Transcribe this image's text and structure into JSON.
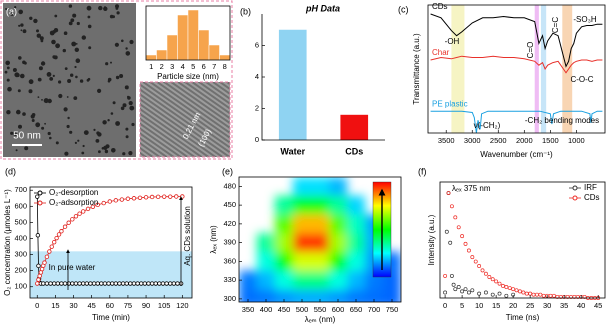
{
  "chart_data": [
    {
      "type": "bar",
      "panel_label": "(a)",
      "x_label": "Particle size (nm)",
      "categories": [
        1,
        2,
        3,
        4,
        5,
        6,
        7,
        8
      ],
      "values": [
        1,
        2,
        5,
        9,
        10,
        6,
        3,
        1
      ],
      "color": "#f6a44c",
      "image_labels": [
        "50 nm",
        "0.21 nm",
        "(100)"
      ]
    },
    {
      "type": "bar",
      "panel_label": "(b)",
      "title": "pH Data",
      "categories": [
        "Water",
        "CDs"
      ],
      "values": [
        7.0,
        1.6
      ],
      "colors": [
        "#8fd3f2",
        "#f01010"
      ],
      "ylim": [
        0,
        8
      ],
      "yticks": [
        0,
        2,
        4,
        6
      ]
    },
    {
      "type": "line",
      "panel_label": "(c)",
      "x_label": "Wavenumber (cm⁻¹)",
      "y_label": "Transmittance (a.u.)",
      "xlim": [
        3850,
        450
      ],
      "xticks": [
        3500,
        3000,
        2500,
        2000,
        1500,
        1000
      ],
      "ylim": [
        0,
        1
      ],
      "bands": [
        {
          "x": [
            3400,
            3150
          ],
          "color": "#f3f0b0"
        },
        {
          "x": [
            1800,
            1720
          ],
          "color": "#e9a6f0"
        },
        {
          "x": [
            1680,
            1580
          ],
          "color": "#b4dcf5"
        },
        {
          "x": [
            1270,
            1080
          ],
          "color": "#f5c79a"
        }
      ],
      "series": [
        {
          "name": "CDs",
          "color": "#000000",
          "x": [
            3800,
            3600,
            3400,
            3300,
            3200,
            3000,
            2800,
            2600,
            2400,
            2200,
            2000,
            1800,
            1720,
            1650,
            1600,
            1550,
            1450,
            1350,
            1250,
            1200,
            1150,
            1100,
            1050,
            1000,
            900,
            800,
            700,
            600,
            500
          ],
          "values": [
            0.93,
            0.9,
            0.8,
            0.76,
            0.79,
            0.86,
            0.9,
            0.9,
            0.91,
            0.9,
            0.9,
            0.87,
            0.7,
            0.76,
            0.66,
            0.72,
            0.78,
            0.76,
            0.6,
            0.52,
            0.56,
            0.66,
            0.7,
            0.78,
            0.83,
            0.84,
            0.84,
            0.85,
            0.85
          ]
        },
        {
          "name": "Char",
          "color": "#e8302a",
          "x": [
            3800,
            3600,
            3400,
            3300,
            3200,
            3000,
            2800,
            2600,
            2400,
            2200,
            2000,
            1800,
            1720,
            1650,
            1600,
            1550,
            1450,
            1350,
            1250,
            1200,
            1150,
            1100,
            1050,
            1000,
            900,
            800,
            700,
            600,
            500
          ],
          "values": [
            0.57,
            0.59,
            0.58,
            0.59,
            0.6,
            0.59,
            0.59,
            0.6,
            0.59,
            0.59,
            0.58,
            0.56,
            0.53,
            0.55,
            0.5,
            0.53,
            0.55,
            0.56,
            0.5,
            0.47,
            0.5,
            0.53,
            0.55,
            0.56,
            0.57,
            0.57,
            0.56,
            0.57,
            0.57
          ]
        },
        {
          "name": "PE plastic",
          "color": "#1aa0e0",
          "x": [
            3800,
            3500,
            3200,
            3000,
            2960,
            2920,
            2890,
            2850,
            2820,
            2700,
            2400,
            2000,
            1700,
            1500,
            1470,
            1440,
            1300,
            1100,
            900,
            740,
            720,
            700,
            600,
            500
          ],
          "values": [
            0.17,
            0.17,
            0.17,
            0.16,
            0.12,
            0.0,
            0.1,
            0.03,
            0.15,
            0.17,
            0.17,
            0.17,
            0.17,
            0.15,
            0.07,
            0.15,
            0.17,
            0.17,
            0.17,
            0.15,
            0.08,
            0.15,
            0.17,
            0.17
          ]
        }
      ],
      "annotations": [
        "-OH",
        "C=O",
        "C=C",
        "-SO₃H",
        "C-O-C",
        "ν(-CH₂)",
        "-CH₂ bending modes"
      ]
    },
    {
      "type": "line",
      "panel_label": "(d)",
      "x_label": "Time (min)",
      "y_label": "O₂ concentration (μmoles L⁻¹)",
      "xlim": [
        -6,
        128
      ],
      "xticks": [
        0,
        15,
        30,
        45,
        60,
        75,
        90,
        105,
        120
      ],
      "ylim": [
        30,
        720
      ],
      "yticks": [
        100,
        200,
        300,
        400,
        500,
        600,
        700
      ],
      "band": {
        "y": [
          30,
          320
        ],
        "color": "#bfe6f8"
      },
      "legend": "upper left",
      "series": [
        {
          "name": "O₂-desorption",
          "color": "#000000",
          "marker": "circle",
          "x": [
            0,
            0.5,
            1,
            1.5,
            2,
            3,
            5,
            8,
            11,
            14,
            17,
            20,
            23,
            26,
            29,
            32,
            35,
            38,
            41,
            44,
            47,
            50,
            53,
            56,
            59,
            62,
            65,
            68,
            71,
            74,
            77,
            80,
            83,
            86,
            89,
            92,
            95,
            98,
            101,
            104,
            107,
            110,
            113,
            116,
            119
          ],
          "values": [
            660,
            420,
            230,
            150,
            125,
            120,
            120,
            120,
            120,
            120,
            120,
            120,
            120,
            120,
            120,
            120,
            120,
            120,
            120,
            120,
            120,
            120,
            120,
            120,
            120,
            120,
            120,
            120,
            120,
            120,
            120,
            120,
            120,
            120,
            120,
            120,
            120,
            120,
            120,
            120,
            120,
            120,
            120,
            120,
            120
          ]
        },
        {
          "name": "O₂-adsorption",
          "color": "#e0201c",
          "marker": "circle",
          "x": [
            0,
            1,
            2,
            3,
            4,
            5,
            6,
            8,
            10,
            12,
            14,
            16,
            18,
            20,
            23,
            26,
            29,
            32,
            35,
            38,
            42,
            46,
            50,
            55,
            60,
            65,
            70,
            75,
            80,
            85,
            90,
            95,
            100,
            105,
            110,
            115,
            120
          ],
          "values": [
            120,
            144,
            167,
            189,
            210,
            231,
            250,
            286,
            319,
            349,
            377,
            402,
            425,
            445,
            473,
            498,
            519,
            538,
            554,
            568,
            584,
            597,
            609,
            620,
            630,
            637,
            642,
            647,
            650,
            653,
            656,
            658,
            659,
            660,
            660,
            661,
            661
          ]
        }
      ],
      "annotations": [
        "In pure water",
        "Aq. CDs solution"
      ]
    },
    {
      "type": "heatmap",
      "panel_label": "(e)",
      "x_label": "λₑₘ (nm)",
      "y_label": "λₑₓ (nm)",
      "xlim": [
        325,
        775
      ],
      "xticks": [
        350,
        400,
        450,
        500,
        550,
        600,
        650,
        700,
        750
      ],
      "ylim": [
        295,
        495
      ],
      "yticks": [
        300,
        330,
        360,
        390,
        420,
        450,
        480
      ],
      "colormap": [
        "#0000ff",
        "#00ffff",
        "#00ff00",
        "#ffff00",
        "#ff0000"
      ],
      "x": [
        350,
        400,
        450,
        500,
        550,
        600,
        650,
        700,
        750
      ],
      "y": [
        300,
        330,
        360,
        390,
        420,
        450,
        480
      ],
      "z": [
        [
          0.11,
          0.12,
          0.15,
          0.17,
          0.17,
          0.15,
          0.12,
          0.11,
          0.1
        ],
        [
          0.12,
          0.18,
          0.28,
          0.37,
          0.37,
          0.28,
          0.18,
          0.12,
          0.1
        ],
        [
          null,
          0.28,
          0.5,
          0.71,
          0.71,
          0.5,
          0.28,
          0.15,
          0.11
        ],
        [
          null,
          0.35,
          0.66,
          0.95,
          0.95,
          0.66,
          0.35,
          0.17,
          null
        ],
        [
          null,
          null,
          0.58,
          0.82,
          0.82,
          0.58,
          0.31,
          0.16,
          null
        ],
        [
          null,
          null,
          0.35,
          0.47,
          0.47,
          0.35,
          0.21,
          null,
          null
        ],
        [
          null,
          null,
          null,
          0.22,
          0.22,
          0.18,
          null,
          null,
          null
        ]
      ]
    },
    {
      "type": "scatter",
      "panel_label": "(f)",
      "x_label": "Time (ns)",
      "y_label": "Intensity (a.u.)",
      "xlim": [
        -1.5,
        47
      ],
      "xticks": [
        0,
        5,
        10,
        15,
        20,
        25,
        30,
        35,
        40,
        45
      ],
      "ylim": [
        0,
        1.05
      ],
      "legend": "upper right",
      "annotation": "λₑₓ 375 nm",
      "series": [
        {
          "name": "IRF",
          "color": "#333333",
          "x": [
            0,
            0.5,
            1,
            1.5,
            2,
            2.5,
            3,
            4,
            5,
            6,
            7,
            8,
            10,
            12,
            14,
            16,
            18,
            20
          ],
          "values": [
            0.05,
            0.6,
            0.95,
            0.5,
            0.2,
            0.12,
            0.08,
            0.1,
            0.06,
            0.08,
            0.05,
            0.07,
            0.04,
            0.05,
            0.03,
            0.04,
            0.02,
            0.03
          ]
        },
        {
          "name": "CDs",
          "color": "#ee2a24",
          "x": [
            0,
            1,
            2,
            3,
            4,
            5,
            6,
            7,
            8,
            9,
            10,
            11,
            12,
            13,
            14,
            15,
            16,
            17,
            18,
            19,
            20,
            21,
            22,
            23,
            24,
            25,
            26,
            27,
            28,
            29,
            30,
            31,
            32,
            33,
            34,
            35,
            36,
            37,
            38,
            39,
            40,
            41,
            42,
            43,
            44,
            45
          ],
          "values": [
            0.2,
            0.95,
            0.83,
            0.73,
            0.64,
            0.56,
            0.49,
            0.43,
            0.37,
            0.33,
            0.29,
            0.25,
            0.22,
            0.19,
            0.17,
            0.15,
            0.13,
            0.11,
            0.1,
            0.09,
            0.08,
            0.07,
            0.06,
            0.05,
            0.04,
            0.04,
            0.03,
            0.03,
            0.03,
            0.02,
            0.02,
            0.02,
            0.02,
            0.01,
            0.01,
            0.01,
            0.01,
            0.01,
            0.01,
            0.01,
            0.01,
            0.01,
            0,
            0,
            0,
            0
          ]
        }
      ]
    }
  ]
}
